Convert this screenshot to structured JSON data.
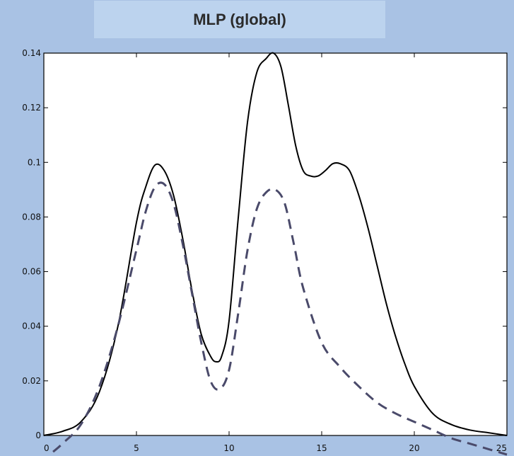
{
  "chart_data": {
    "type": "line",
    "title": "MLP (global)",
    "xlabel": "",
    "ylabel": "",
    "xlim": [
      0,
      25
    ],
    "ylim": [
      0,
      0.14
    ],
    "xticks": [
      0,
      5,
      10,
      15,
      20,
      25
    ],
    "xtick_labels": [
      "0",
      "5",
      "10",
      "15",
      "20",
      "25"
    ],
    "yticks": [
      0,
      0.02,
      0.04,
      0.06,
      0.08,
      0.1,
      0.12,
      0.14
    ],
    "ytick_labels": [
      "0",
      "0.02",
      "0.04",
      "0.06",
      "0.08",
      "0.1",
      "0.12",
      "0.14"
    ],
    "grid": false,
    "series": [
      {
        "style": "solid",
        "color": "#000000",
        "x": [
          0,
          1,
          2,
          3,
          4,
          5,
          5.5,
          6,
          6.5,
          7,
          7.5,
          8,
          8.5,
          9,
          9.3,
          9.6,
          10,
          10.5,
          11,
          11.5,
          12,
          12.4,
          12.8,
          13.2,
          13.6,
          14,
          14.4,
          14.8,
          15.2,
          15.6,
          16,
          16.5,
          17,
          17.5,
          18,
          18.5,
          19,
          19.5,
          20,
          21,
          22,
          23,
          24,
          25
        ],
        "y": [
          0.0,
          0.0015,
          0.005,
          0.016,
          0.04,
          0.078,
          0.091,
          0.099,
          0.097,
          0.088,
          0.072,
          0.053,
          0.037,
          0.029,
          0.027,
          0.029,
          0.042,
          0.08,
          0.115,
          0.133,
          0.138,
          0.14,
          0.135,
          0.121,
          0.106,
          0.097,
          0.095,
          0.095,
          0.097,
          0.0995,
          0.0995,
          0.097,
          0.088,
          0.076,
          0.062,
          0.048,
          0.036,
          0.026,
          0.018,
          0.008,
          0.004,
          0.002,
          0.001,
          0.0
        ]
      },
      {
        "style": "dashed",
        "color": "#4a4a6a",
        "x": [
          0.5,
          1,
          2,
          3,
          4,
          5,
          5.5,
          6,
          6.5,
          7,
          7.5,
          8,
          8.5,
          9,
          9.5,
          10,
          10.5,
          11,
          11.5,
          12,
          12.5,
          13,
          13.5,
          14,
          15,
          16,
          17,
          18,
          19,
          20,
          21,
          22,
          23,
          24,
          25
        ],
        "y": [
          -0.006,
          -0.003,
          0.004,
          0.018,
          0.04,
          0.068,
          0.082,
          0.091,
          0.092,
          0.085,
          0.07,
          0.052,
          0.034,
          0.02,
          0.017,
          0.024,
          0.045,
          0.068,
          0.083,
          0.089,
          0.09,
          0.085,
          0.07,
          0.054,
          0.034,
          0.025,
          0.018,
          0.012,
          0.008,
          0.005,
          0.002,
          -0.001,
          -0.003,
          -0.005,
          -0.007
        ]
      }
    ]
  }
}
